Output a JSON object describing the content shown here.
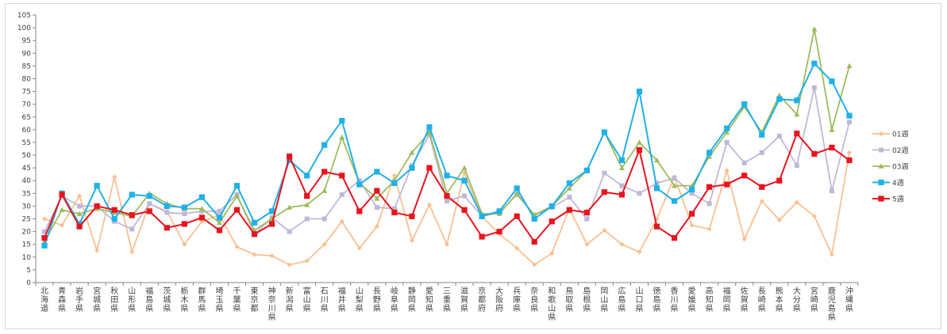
{
  "chart_data": {
    "type": "line",
    "title": "",
    "xlabel": "",
    "ylabel": "",
    "ylim": [
      0,
      105
    ],
    "ytick_step": 5,
    "grid": false,
    "legend_position": "right",
    "categories": [
      "北海道",
      "青森県",
      "岩手県",
      "宮城県",
      "秋田県",
      "山形県",
      "福島県",
      "茨城県",
      "栃木県",
      "群馬県",
      "埼玉県",
      "千葉県",
      "東京都",
      "神奈川県",
      "新潟県",
      "富山県",
      "石川県",
      "福井県",
      "山梨県",
      "長野県",
      "岐阜県",
      "静岡県",
      "愛知県",
      "三重県",
      "滋賀県",
      "京都府",
      "大阪府",
      "兵庫県",
      "奈良県",
      "和歌山県",
      "鳥取県",
      "島根県",
      "岡山県",
      "広島県",
      "山口県",
      "徳島県",
      "香川県",
      "愛媛県",
      "高知県",
      "福岡県",
      "佐賀県",
      "長崎県",
      "熊本県",
      "大分県",
      "宮崎県",
      "鹿児島県",
      "沖縄県"
    ],
    "series": [
      {
        "name": "01週",
        "color": "#F9BF8F",
        "marker": "diamond",
        "values": [
          25,
          22.5,
          34,
          12.5,
          41.5,
          12,
          31,
          28,
          15,
          24,
          26.5,
          14,
          11,
          10.5,
          7,
          8.5,
          15,
          24,
          13.5,
          22,
          42,
          16.5,
          30.5,
          15,
          43,
          26,
          19,
          13.5,
          7,
          11.5,
          29,
          15,
          20.5,
          15,
          12,
          25,
          41.5,
          22.5,
          21,
          44,
          17,
          32,
          24.5,
          31.5,
          26,
          11,
          51
        ]
      },
      {
        "name": "02週",
        "color": "#C0B7D7",
        "marker": "square",
        "values": [
          20,
          34,
          30,
          30,
          24,
          21,
          31,
          27.5,
          27,
          28,
          28,
          34.5,
          19,
          25.5,
          20,
          25,
          25,
          34.5,
          40,
          29.5,
          29,
          46,
          58,
          32,
          34,
          26,
          27.5,
          34.5,
          26.5,
          29.5,
          33.5,
          25,
          43,
          38,
          35,
          39,
          41,
          35,
          31,
          55,
          47,
          51,
          57.5,
          46,
          76.5,
          36,
          63
        ]
      },
      {
        "name": "03週",
        "color": "#9BBB59",
        "marker": "triangle",
        "values": [
          16,
          28.5,
          27,
          29,
          27.5,
          26,
          35,
          31,
          29,
          29,
          23.5,
          34,
          20.5,
          25,
          29.5,
          30.5,
          36,
          57,
          39,
          33,
          40,
          51,
          59,
          35,
          45,
          27,
          27,
          35,
          26.5,
          30,
          37,
          44,
          59,
          45,
          55,
          48,
          38,
          38,
          49.5,
          59,
          69,
          59,
          73.5,
          66,
          99.5,
          60,
          85
        ]
      },
      {
        "name": "4週",
        "color": "#1FB1E8",
        "marker": "square",
        "values": [
          14.5,
          35,
          23,
          38,
          25,
          34.5,
          34,
          30,
          29.5,
          33.5,
          25.5,
          38,
          23.5,
          28,
          48,
          42,
          54,
          63.5,
          38.5,
          43.5,
          39,
          45,
          61,
          42,
          40,
          26,
          28,
          37,
          25,
          30,
          39,
          44,
          59,
          48,
          75,
          37,
          32,
          36.5,
          51,
          60.5,
          70,
          58,
          72,
          71.5,
          86,
          79,
          65.5
        ]
      },
      {
        "name": "5週",
        "color": "#E8141E",
        "marker": "square",
        "values": [
          17.5,
          34.5,
          22,
          30,
          28.5,
          26.5,
          28,
          21.5,
          23,
          25.5,
          20.5,
          28.5,
          19,
          23,
          49.5,
          34,
          43.5,
          42,
          28,
          36,
          27.5,
          26,
          45,
          34,
          28.5,
          18,
          20,
          26,
          16,
          24,
          28.5,
          27.5,
          35.5,
          34.5,
          52,
          22,
          17.5,
          27,
          37.5,
          38.5,
          42,
          37.5,
          40,
          58.5,
          50.5,
          53,
          48
        ]
      }
    ]
  }
}
